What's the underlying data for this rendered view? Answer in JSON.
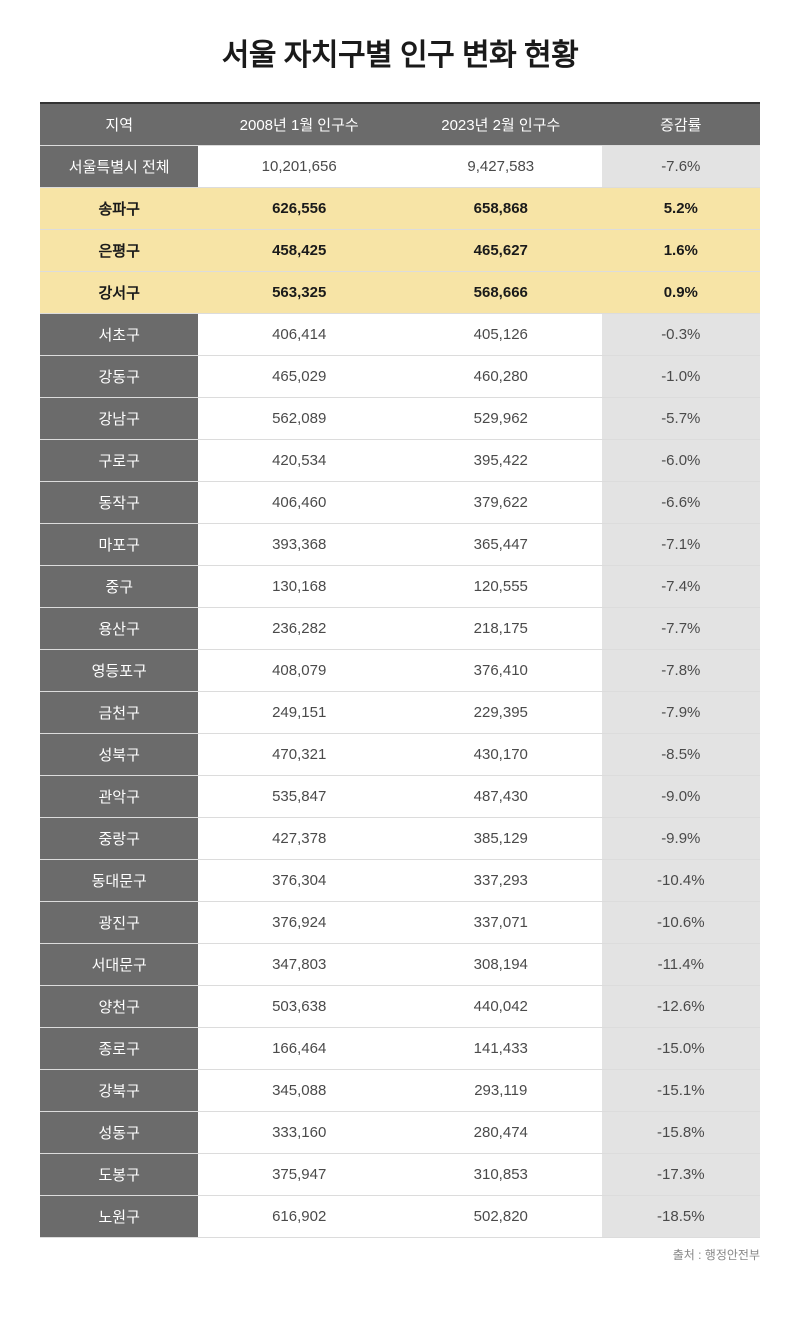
{
  "title": "서울 자치구별 인구 변화 현황",
  "columns": [
    "지역",
    "2008년 1월 인구수",
    "2023년 2월 인구수",
    "증감률"
  ],
  "rows": [
    {
      "region": "서울특별시 전체",
      "pop2008": "10,201,656",
      "pop2023": "9,427,583",
      "change": "-7.6%",
      "highlight": false
    },
    {
      "region": "송파구",
      "pop2008": "626,556",
      "pop2023": "658,868",
      "change": "5.2%",
      "highlight": true
    },
    {
      "region": "은평구",
      "pop2008": "458,425",
      "pop2023": "465,627",
      "change": "1.6%",
      "highlight": true
    },
    {
      "region": "강서구",
      "pop2008": "563,325",
      "pop2023": "568,666",
      "change": "0.9%",
      "highlight": true
    },
    {
      "region": "서초구",
      "pop2008": "406,414",
      "pop2023": "405,126",
      "change": "-0.3%",
      "highlight": false
    },
    {
      "region": "강동구",
      "pop2008": "465,029",
      "pop2023": "460,280",
      "change": "-1.0%",
      "highlight": false
    },
    {
      "region": "강남구",
      "pop2008": "562,089",
      "pop2023": "529,962",
      "change": "-5.7%",
      "highlight": false
    },
    {
      "region": "구로구",
      "pop2008": "420,534",
      "pop2023": "395,422",
      "change": "-6.0%",
      "highlight": false
    },
    {
      "region": "동작구",
      "pop2008": "406,460",
      "pop2023": "379,622",
      "change": "-6.6%",
      "highlight": false
    },
    {
      "region": "마포구",
      "pop2008": "393,368",
      "pop2023": "365,447",
      "change": "-7.1%",
      "highlight": false
    },
    {
      "region": "중구",
      "pop2008": "130,168",
      "pop2023": "120,555",
      "change": "-7.4%",
      "highlight": false
    },
    {
      "region": "용산구",
      "pop2008": "236,282",
      "pop2023": "218,175",
      "change": "-7.7%",
      "highlight": false
    },
    {
      "region": "영등포구",
      "pop2008": "408,079",
      "pop2023": "376,410",
      "change": "-7.8%",
      "highlight": false
    },
    {
      "region": "금천구",
      "pop2008": "249,151",
      "pop2023": "229,395",
      "change": "-7.9%",
      "highlight": false
    },
    {
      "region": "성북구",
      "pop2008": "470,321",
      "pop2023": "430,170",
      "change": "-8.5%",
      "highlight": false
    },
    {
      "region": "관악구",
      "pop2008": "535,847",
      "pop2023": "487,430",
      "change": "-9.0%",
      "highlight": false
    },
    {
      "region": "중랑구",
      "pop2008": "427,378",
      "pop2023": "385,129",
      "change": "-9.9%",
      "highlight": false
    },
    {
      "region": "동대문구",
      "pop2008": "376,304",
      "pop2023": "337,293",
      "change": "-10.4%",
      "highlight": false
    },
    {
      "region": "광진구",
      "pop2008": "376,924",
      "pop2023": "337,071",
      "change": "-10.6%",
      "highlight": false
    },
    {
      "region": "서대문구",
      "pop2008": "347,803",
      "pop2023": "308,194",
      "change": "-11.4%",
      "highlight": false
    },
    {
      "region": "양천구",
      "pop2008": "503,638",
      "pop2023": "440,042",
      "change": "-12.6%",
      "highlight": false
    },
    {
      "region": "종로구",
      "pop2008": "166,464",
      "pop2023": "141,433",
      "change": "-15.0%",
      "highlight": false
    },
    {
      "region": "강북구",
      "pop2008": "345,088",
      "pop2023": "293,119",
      "change": "-15.1%",
      "highlight": false
    },
    {
      "region": "성동구",
      "pop2008": "333,160",
      "pop2023": "280,474",
      "change": "-15.8%",
      "highlight": false
    },
    {
      "region": "도봉구",
      "pop2008": "375,947",
      "pop2023": "310,853",
      "change": "-17.3%",
      "highlight": false
    },
    {
      "region": "노원구",
      "pop2008": "616,902",
      "pop2023": "502,820",
      "change": "-18.5%",
      "highlight": false
    }
  ],
  "source": "출처 : 행정안전부",
  "colors": {
    "header_bg": "#6b6b6b",
    "header_text": "#ffffff",
    "highlight_bg": "#f7e4a6",
    "change_bg": "#e3e3e3",
    "border": "#dcdcdc"
  }
}
